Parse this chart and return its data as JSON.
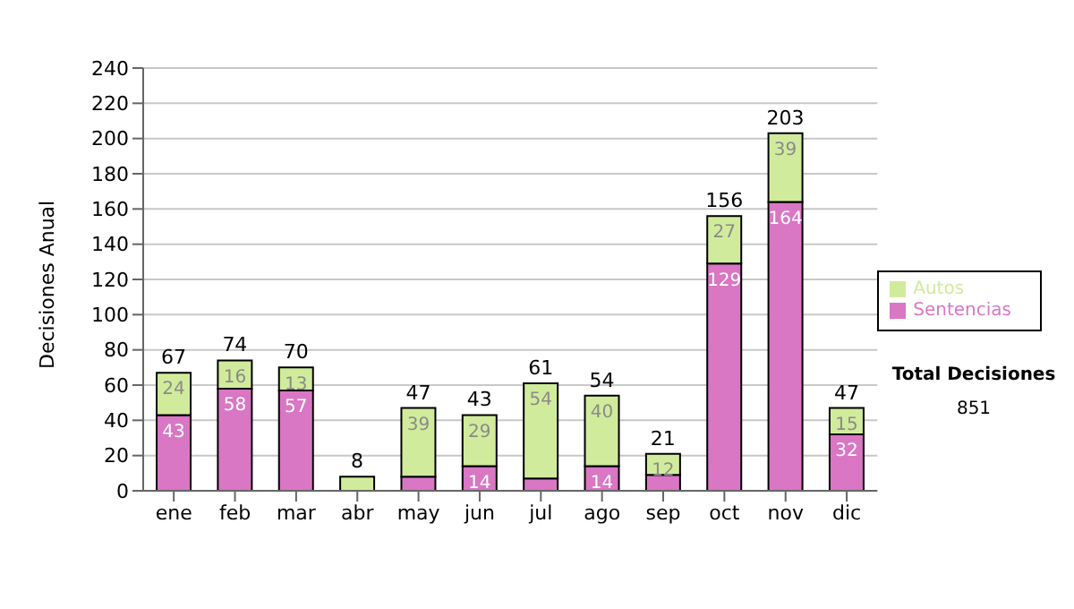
{
  "chart_data": {
    "type": "bar",
    "ylabel": "Decisiones Anual",
    "categories": [
      "ene",
      "feb",
      "mar",
      "abr",
      "may",
      "jun",
      "jul",
      "ago",
      "sep",
      "oct",
      "nov",
      "dic"
    ],
    "series": [
      {
        "name": "Sentencias",
        "color": "#d977c4",
        "values": [
          43,
          58,
          57,
          0,
          8,
          14,
          7,
          14,
          9,
          129,
          164,
          32
        ],
        "value_labels": [
          "43",
          "58",
          "57",
          null,
          null,
          "14",
          null,
          "14",
          null,
          "129",
          "164",
          "32"
        ]
      },
      {
        "name": "Autos",
        "color": "#d1eb9c",
        "values": [
          24,
          16,
          13,
          8,
          39,
          29,
          54,
          40,
          12,
          27,
          39,
          15
        ],
        "value_labels": [
          "24",
          "16",
          "13",
          null,
          "39",
          "29",
          "54",
          "40",
          "12",
          "27",
          "39",
          "15"
        ]
      }
    ],
    "stacked": true,
    "totals": [
      "67",
      "74",
      "70",
      "8",
      "47",
      "43",
      "61",
      "54",
      "21",
      "156",
      "203",
      "47"
    ],
    "ylim": [
      0,
      240
    ],
    "yticks": [
      0,
      20,
      40,
      60,
      80,
      100,
      120,
      140,
      160,
      180,
      200,
      220,
      240
    ],
    "grid": "y",
    "legend": "right",
    "annotations": [
      "Total Decisiones",
      "851"
    ]
  }
}
